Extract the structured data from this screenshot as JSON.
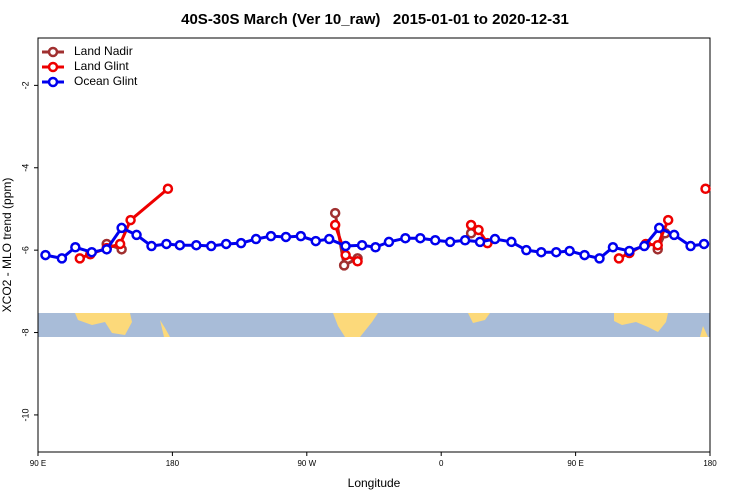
{
  "chart_data": {
    "type": "line",
    "title": "40S-30S March (Ver 10_raw)   2015-01-01 to 2020-12-31",
    "x_label": "Longitude",
    "y_label": "XCO2 - MLO trend (ppm)",
    "xlim": [
      90,
      540
    ],
    "xticks": [
      {
        "value": 90,
        "label": "90 E"
      },
      180,
      {
        "value": 270,
        "label": "90 W"
      },
      {
        "value": 360,
        "label": "0"
      },
      {
        "value": 450,
        "label": "90 E"
      },
      {
        "value": 540,
        "label": "180"
      }
    ],
    "ylim": [
      -10.9,
      -0.85
    ],
    "yticks": [
      -2,
      -4,
      -6,
      -8,
      -10
    ],
    "legend": "top-left",
    "series": [
      {
        "name": "Land Nadir",
        "color": "#a03030",
        "x": [
          136,
          146,
          null,
          289,
          295,
          304,
          null,
          380,
          null,
          505,
          510
        ],
        "values": [
          -5.85,
          -5.98,
          null,
          -5.1,
          -6.37,
          -6.2,
          null,
          -5.59,
          null,
          -5.98,
          -5.59
        ]
      },
      {
        "name": "Land Glint",
        "color": "#ee0000",
        "x": [
          118,
          125,
          136,
          145,
          152,
          177,
          null,
          289,
          296,
          304,
          null,
          380,
          385,
          391,
          null,
          479,
          486,
          497,
          505,
          512,
          null,
          537
        ],
        "values": [
          -6.2,
          -6.1,
          -5.95,
          -5.85,
          -5.27,
          -4.51,
          null,
          -5.39,
          -6.12,
          -6.27,
          null,
          -5.39,
          -5.51,
          -5.83,
          null,
          -6.2,
          -6.07,
          -5.85,
          -5.88,
          -5.27,
          null,
          -4.51
        ]
      },
      {
        "name": "Ocean Glint",
        "color": "#0000ee",
        "x": [
          95,
          106,
          115,
          126,
          136,
          146,
          156,
          166,
          176,
          185,
          196,
          206,
          216,
          226,
          236,
          246,
          256,
          266,
          276,
          285,
          296,
          307,
          316,
          325,
          336,
          346,
          356,
          366,
          376,
          386,
          396,
          407,
          417,
          427,
          437,
          446,
          456,
          466,
          475,
          486,
          496,
          506,
          516,
          527,
          536
        ],
        "values": [
          -6.12,
          -6.2,
          -5.93,
          -6.05,
          -5.98,
          -5.46,
          -5.63,
          -5.9,
          -5.85,
          -5.88,
          -5.88,
          -5.9,
          -5.85,
          -5.83,
          -5.73,
          -5.66,
          -5.68,
          -5.66,
          -5.78,
          -5.73,
          -5.9,
          -5.88,
          -5.93,
          -5.8,
          -5.71,
          -5.71,
          -5.76,
          -5.8,
          -5.76,
          -5.8,
          -5.73,
          -5.8,
          -6.0,
          -6.05,
          -6.05,
          -6.02,
          -6.12,
          -6.2,
          -5.93,
          -6.02,
          -5.9,
          -5.46,
          -5.63,
          -5.9,
          -5.85
        ]
      }
    ]
  }
}
